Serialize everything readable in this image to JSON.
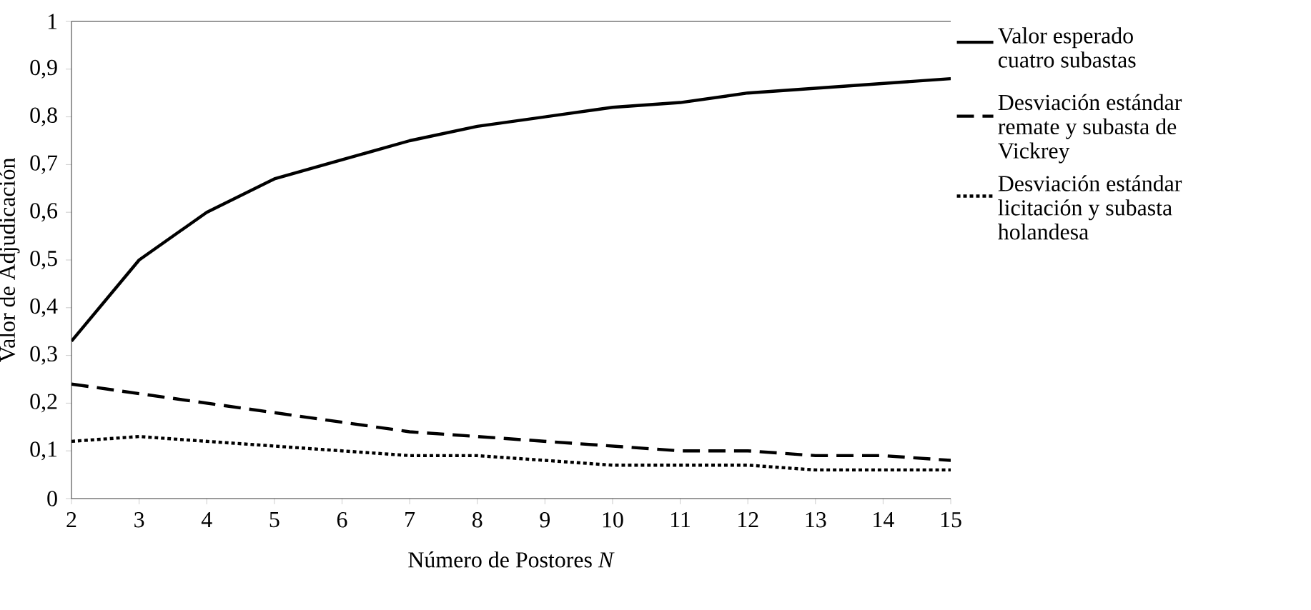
{
  "chart_data": {
    "type": "line",
    "xlabel": "Número de Postores *N*",
    "ylabel": "Valor de Adjudicación",
    "x": [
      2,
      3,
      4,
      5,
      6,
      7,
      8,
      9,
      10,
      11,
      12,
      13,
      14,
      15
    ],
    "xlim": [
      2,
      15
    ],
    "xticks": [
      2,
      3,
      4,
      5,
      6,
      7,
      8,
      9,
      10,
      11,
      12,
      13,
      14,
      15
    ],
    "ylim": [
      0,
      1
    ],
    "yticks": [
      {
        "value": 0,
        "label": "0"
      },
      {
        "value": 0.1,
        "label": "0,1"
      },
      {
        "value": 0.2,
        "label": "0,2"
      },
      {
        "value": 0.3,
        "label": "0,3"
      },
      {
        "value": 0.4,
        "label": "0,4"
      },
      {
        "value": 0.5,
        "label": "0,5"
      },
      {
        "value": 0.6,
        "label": "0,6"
      },
      {
        "value": 0.7,
        "label": "0,7"
      },
      {
        "value": 0.8,
        "label": "0,8"
      },
      {
        "value": 0.9,
        "label": "0,9"
      },
      {
        "value": 1,
        "label": "1"
      }
    ],
    "legend": "right",
    "marker": "none",
    "series": [
      {
        "name": "Valor esperado cuatro subastas",
        "color": "#000000",
        "line_style": "solid",
        "values": [
          0.33,
          0.5,
          0.6,
          0.67,
          0.71,
          0.75,
          0.78,
          0.8,
          0.82,
          0.83,
          0.85,
          0.86,
          0.87,
          0.88
        ]
      },
      {
        "name": "Desviación estándar remate y subasta de Vickrey",
        "color": "#000000",
        "line_style": "dashed",
        "values": [
          0.24,
          0.22,
          0.2,
          0.18,
          0.16,
          0.14,
          0.13,
          0.12,
          0.11,
          0.1,
          0.1,
          0.09,
          0.09,
          0.08
        ]
      },
      {
        "name": "Desviación estándar licitación y subasta holandesa",
        "color": "#000000",
        "line_style": "dotted",
        "values": [
          0.12,
          0.13,
          0.12,
          0.11,
          0.1,
          0.09,
          0.09,
          0.08,
          0.07,
          0.07,
          0.07,
          0.06,
          0.06,
          0.06
        ]
      }
    ]
  }
}
